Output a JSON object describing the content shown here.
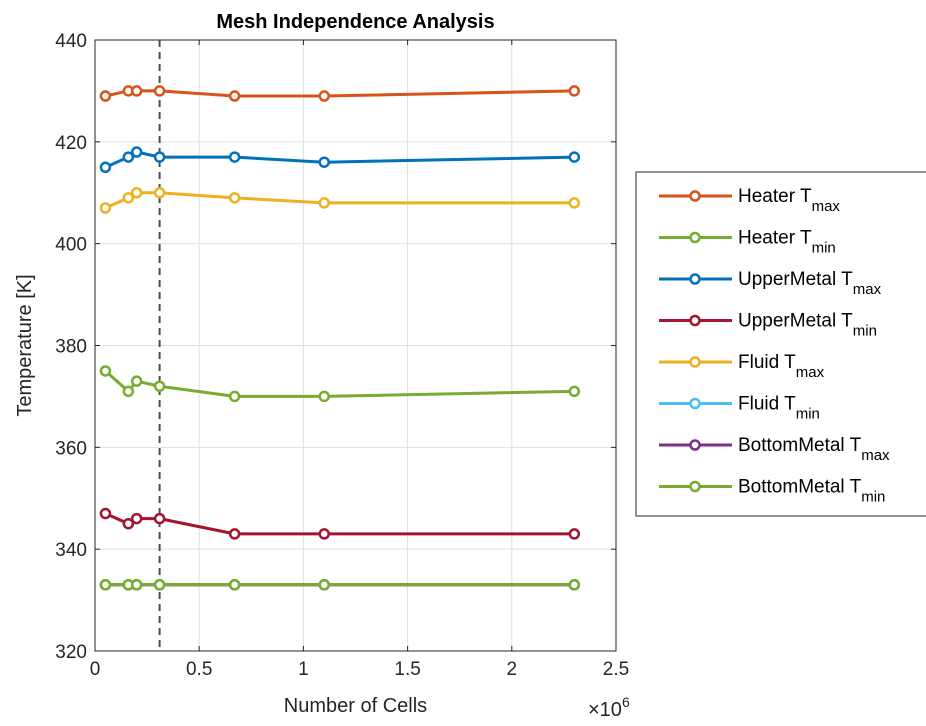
{
  "chart_data": {
    "type": "line",
    "title": "Mesh Independence Analysis",
    "xlabel": "Number of Cells",
    "ylabel": "Temperature [K]",
    "x_exponent_label": "×10",
    "x_exponent_power": "6",
    "xlim": [
      0,
      2500000
    ],
    "ylim": [
      320,
      440
    ],
    "x_ticks": [
      0,
      500000,
      1000000,
      1500000,
      2000000,
      2500000
    ],
    "x_tick_labels": [
      "0",
      "0.5",
      "1",
      "1.5",
      "2",
      "2.5"
    ],
    "y_ticks": [
      320,
      340,
      360,
      380,
      400,
      420,
      440
    ],
    "y_tick_labels": [
      "320",
      "340",
      "360",
      "380",
      "400",
      "420",
      "440"
    ],
    "grid": true,
    "legend_position": "outside-right",
    "reference_line": {
      "x": 310000,
      "style": "dashed",
      "color": "#4d4d4d"
    },
    "x": [
      50000,
      160000,
      200000,
      310000,
      670000,
      1100000,
      2300000
    ],
    "series": [
      {
        "name": "Heater T",
        "subscript": "max",
        "color": "#D95319",
        "values": [
          429,
          430,
          430,
          430,
          429,
          429,
          430
        ]
      },
      {
        "name": "Heater T",
        "subscript": "min",
        "color": "#77AC30",
        "values": [
          375,
          371,
          373,
          372,
          370,
          370,
          371
        ]
      },
      {
        "name": "UpperMetal T",
        "subscript": "max",
        "color": "#0072BD",
        "values": [
          415,
          417,
          418,
          417,
          417,
          416,
          417
        ]
      },
      {
        "name": "UpperMetal T",
        "subscript": "min",
        "color": "#A2142F",
        "values": [
          347,
          345,
          346,
          346,
          343,
          343,
          343
        ]
      },
      {
        "name": "Fluid T",
        "subscript": "max",
        "color": "#EDB120",
        "values": [
          407,
          409,
          410,
          410,
          409,
          408,
          408
        ]
      },
      {
        "name": "Fluid T",
        "subscript": "min",
        "color": "#4DBEEE",
        "values": [
          333,
          333,
          333,
          333,
          333,
          333,
          333
        ]
      },
      {
        "name": "BottomMetal T",
        "subscript": "max",
        "color": "#7E2F8E",
        "values": [
          333,
          333,
          333,
          333,
          333,
          333,
          333
        ]
      },
      {
        "name": "BottomMetal T",
        "subscript": "min",
        "color": "#77AC30",
        "values": [
          333,
          333,
          333,
          333,
          333,
          333,
          333
        ]
      }
    ]
  }
}
